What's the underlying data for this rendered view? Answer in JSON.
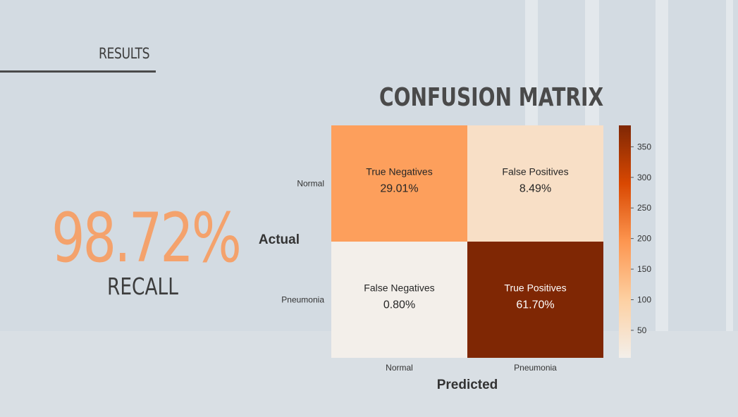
{
  "slide": {
    "section_label": "RESULTS",
    "metric_value": "98.72%",
    "metric_label": "RECALL"
  },
  "colors": {
    "accent": "#f4a26c",
    "cmap_low": "#f3efea",
    "cmap_high": "#7f2704"
  },
  "chart_data": {
    "type": "heatmap",
    "title": "CONFUSION MATRIX",
    "xlabel": "Predicted",
    "ylabel": "Actual",
    "x_categories": [
      "Normal",
      "Pneumonia"
    ],
    "y_categories": [
      "Normal",
      "Pneumonia"
    ],
    "cells": [
      [
        {
          "label": "True Negatives",
          "percent": "29.01%",
          "value": 181
        },
        {
          "label": "False Positives",
          "percent": "8.49%",
          "value": 53
        }
      ],
      [
        {
          "label": "False Negatives",
          "percent": "0.80%",
          "value": 5
        },
        {
          "label": "True Positives",
          "percent": "61.70%",
          "value": 385
        }
      ]
    ],
    "colorbar": {
      "range": [
        5,
        385
      ],
      "ticks": [
        50,
        100,
        150,
        200,
        250,
        300,
        350
      ]
    }
  }
}
